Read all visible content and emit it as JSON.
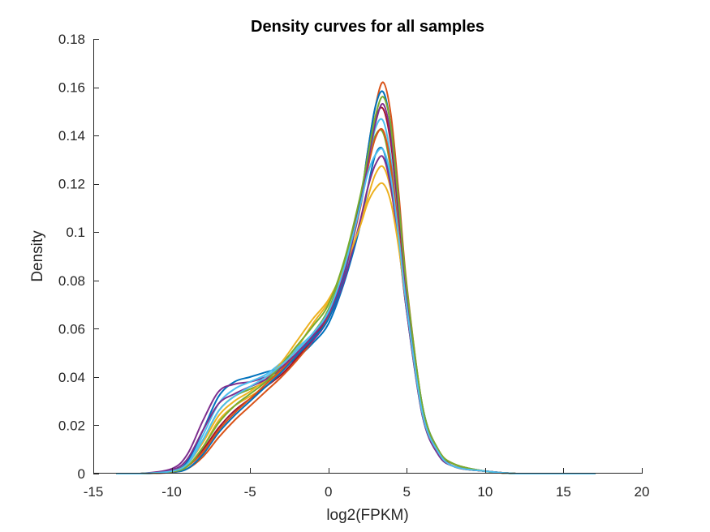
{
  "chart_data": {
    "type": "line",
    "title": "Density curves for all samples",
    "xlabel": "log2(FPKM)",
    "ylabel": "Density",
    "xlim": [
      -15,
      20
    ],
    "ylim": [
      0,
      0.18
    ],
    "xticks": [
      -15,
      -10,
      -5,
      0,
      5,
      10,
      15,
      20
    ],
    "xtick_labels": [
      "-15",
      "-10",
      "-5",
      "0",
      "5",
      "10",
      "15",
      "20"
    ],
    "yticks": [
      0,
      0.02,
      0.04,
      0.06,
      0.08,
      0.1,
      0.12,
      0.14,
      0.16,
      0.18
    ],
    "ytick_labels": [
      "0",
      "0.02",
      "0.04",
      "0.06",
      "0.08",
      "0.1",
      "0.12",
      "0.14",
      "0.16",
      "0.18"
    ],
    "grid": false,
    "legend": "none",
    "x": [
      -13.5,
      -12,
      -10,
      -9,
      -8,
      -7,
      -6,
      -5,
      -4,
      -3,
      -2,
      -1,
      0,
      1,
      2,
      2.5,
      3,
      3.5,
      4,
      4.5,
      5,
      6,
      7,
      8,
      10,
      12,
      14,
      17
    ],
    "series": [
      {
        "color": "#0072BD",
        "values": [
          0,
          0,
          0.001,
          0.005,
          0.018,
          0.032,
          0.038,
          0.04,
          0.042,
          0.044,
          0.048,
          0.054,
          0.062,
          0.079,
          0.102,
          0.118,
          0.132,
          0.134,
          0.119,
          0.095,
          0.067,
          0.024,
          0.008,
          0.003,
          0.001,
          0,
          0,
          0
        ]
      },
      {
        "color": "#D95319",
        "values": [
          0,
          0,
          0.0005,
          0.002,
          0.007,
          0.015,
          0.022,
          0.028,
          0.034,
          0.04,
          0.047,
          0.055,
          0.065,
          0.083,
          0.111,
          0.133,
          0.152,
          0.162,
          0.148,
          0.115,
          0.078,
          0.028,
          0.01,
          0.004,
          0.001,
          0,
          0,
          0
        ]
      },
      {
        "color": "#EDB120",
        "values": [
          0,
          0,
          0.001,
          0.003,
          0.011,
          0.022,
          0.028,
          0.032,
          0.036,
          0.043,
          0.052,
          0.062,
          0.071,
          0.084,
          0.103,
          0.114,
          0.124,
          0.127,
          0.117,
          0.096,
          0.07,
          0.026,
          0.009,
          0.003,
          0.001,
          0,
          0,
          0
        ]
      },
      {
        "color": "#7E2F8E",
        "values": [
          0,
          0,
          0.002,
          0.008,
          0.022,
          0.034,
          0.037,
          0.038,
          0.04,
          0.043,
          0.049,
          0.055,
          0.064,
          0.08,
          0.104,
          0.118,
          0.128,
          0.131,
          0.118,
          0.094,
          0.067,
          0.024,
          0.008,
          0.003,
          0.001,
          0,
          0,
          0
        ]
      },
      {
        "color": "#77AC30",
        "values": [
          0,
          0,
          0.001,
          0.004,
          0.014,
          0.026,
          0.032,
          0.035,
          0.038,
          0.043,
          0.05,
          0.058,
          0.068,
          0.086,
          0.112,
          0.128,
          0.14,
          0.141,
          0.125,
          0.098,
          0.069,
          0.025,
          0.009,
          0.003,
          0.001,
          0,
          0,
          0
        ]
      },
      {
        "color": "#4DBEEE",
        "values": [
          0,
          0,
          0.001,
          0.004,
          0.016,
          0.029,
          0.035,
          0.038,
          0.041,
          0.046,
          0.052,
          0.058,
          0.067,
          0.084,
          0.11,
          0.128,
          0.143,
          0.146,
          0.13,
          0.101,
          0.07,
          0.025,
          0.009,
          0.003,
          0.001,
          0,
          0,
          0
        ]
      },
      {
        "color": "#A2142F",
        "values": [
          0,
          0,
          0.0008,
          0.003,
          0.01,
          0.019,
          0.026,
          0.031,
          0.036,
          0.041,
          0.048,
          0.056,
          0.066,
          0.084,
          0.112,
          0.131,
          0.147,
          0.151,
          0.136,
          0.106,
          0.073,
          0.027,
          0.01,
          0.003,
          0.001,
          0,
          0,
          0
        ]
      },
      {
        "color": "#0072BD",
        "values": [
          0,
          0,
          0.0006,
          0.002,
          0.008,
          0.017,
          0.024,
          0.03,
          0.036,
          0.042,
          0.049,
          0.056,
          0.064,
          0.082,
          0.111,
          0.133,
          0.152,
          0.158,
          0.143,
          0.111,
          0.076,
          0.028,
          0.01,
          0.004,
          0.001,
          0,
          0,
          0
        ]
      },
      {
        "color": "#D95319",
        "values": [
          0,
          0,
          0.0007,
          0.003,
          0.009,
          0.018,
          0.025,
          0.031,
          0.037,
          0.043,
          0.05,
          0.057,
          0.066,
          0.083,
          0.109,
          0.126,
          0.139,
          0.142,
          0.127,
          0.099,
          0.069,
          0.025,
          0.009,
          0.003,
          0.001,
          0,
          0,
          0
        ]
      },
      {
        "color": "#EDB120",
        "values": [
          0,
          0,
          0.001,
          0.004,
          0.013,
          0.024,
          0.03,
          0.034,
          0.039,
          0.046,
          0.055,
          0.064,
          0.072,
          0.085,
          0.102,
          0.112,
          0.118,
          0.12,
          0.112,
          0.093,
          0.069,
          0.027,
          0.01,
          0.004,
          0.001,
          0,
          0,
          0
        ]
      },
      {
        "color": "#7E2F8E",
        "values": [
          0,
          0,
          0.0015,
          0.006,
          0.018,
          0.029,
          0.033,
          0.036,
          0.039,
          0.044,
          0.05,
          0.057,
          0.066,
          0.083,
          0.11,
          0.128,
          0.145,
          0.153,
          0.139,
          0.108,
          0.074,
          0.027,
          0.009,
          0.003,
          0.001,
          0,
          0,
          0
        ]
      },
      {
        "color": "#77AC30",
        "values": [
          0,
          0,
          0.0008,
          0.003,
          0.011,
          0.021,
          0.028,
          0.033,
          0.038,
          0.045,
          0.053,
          0.061,
          0.07,
          0.088,
          0.114,
          0.131,
          0.148,
          0.156,
          0.143,
          0.111,
          0.077,
          0.028,
          0.01,
          0.004,
          0.001,
          0,
          0,
          0
        ]
      },
      {
        "color": "#4DBEEE",
        "values": [
          0,
          0,
          0.001,
          0.004,
          0.014,
          0.026,
          0.032,
          0.036,
          0.04,
          0.045,
          0.051,
          0.058,
          0.067,
          0.085,
          0.11,
          0.124,
          0.132,
          0.134,
          0.122,
          0.097,
          0.069,
          0.025,
          0.009,
          0.003,
          0.001,
          0,
          0,
          0
        ]
      }
    ]
  }
}
